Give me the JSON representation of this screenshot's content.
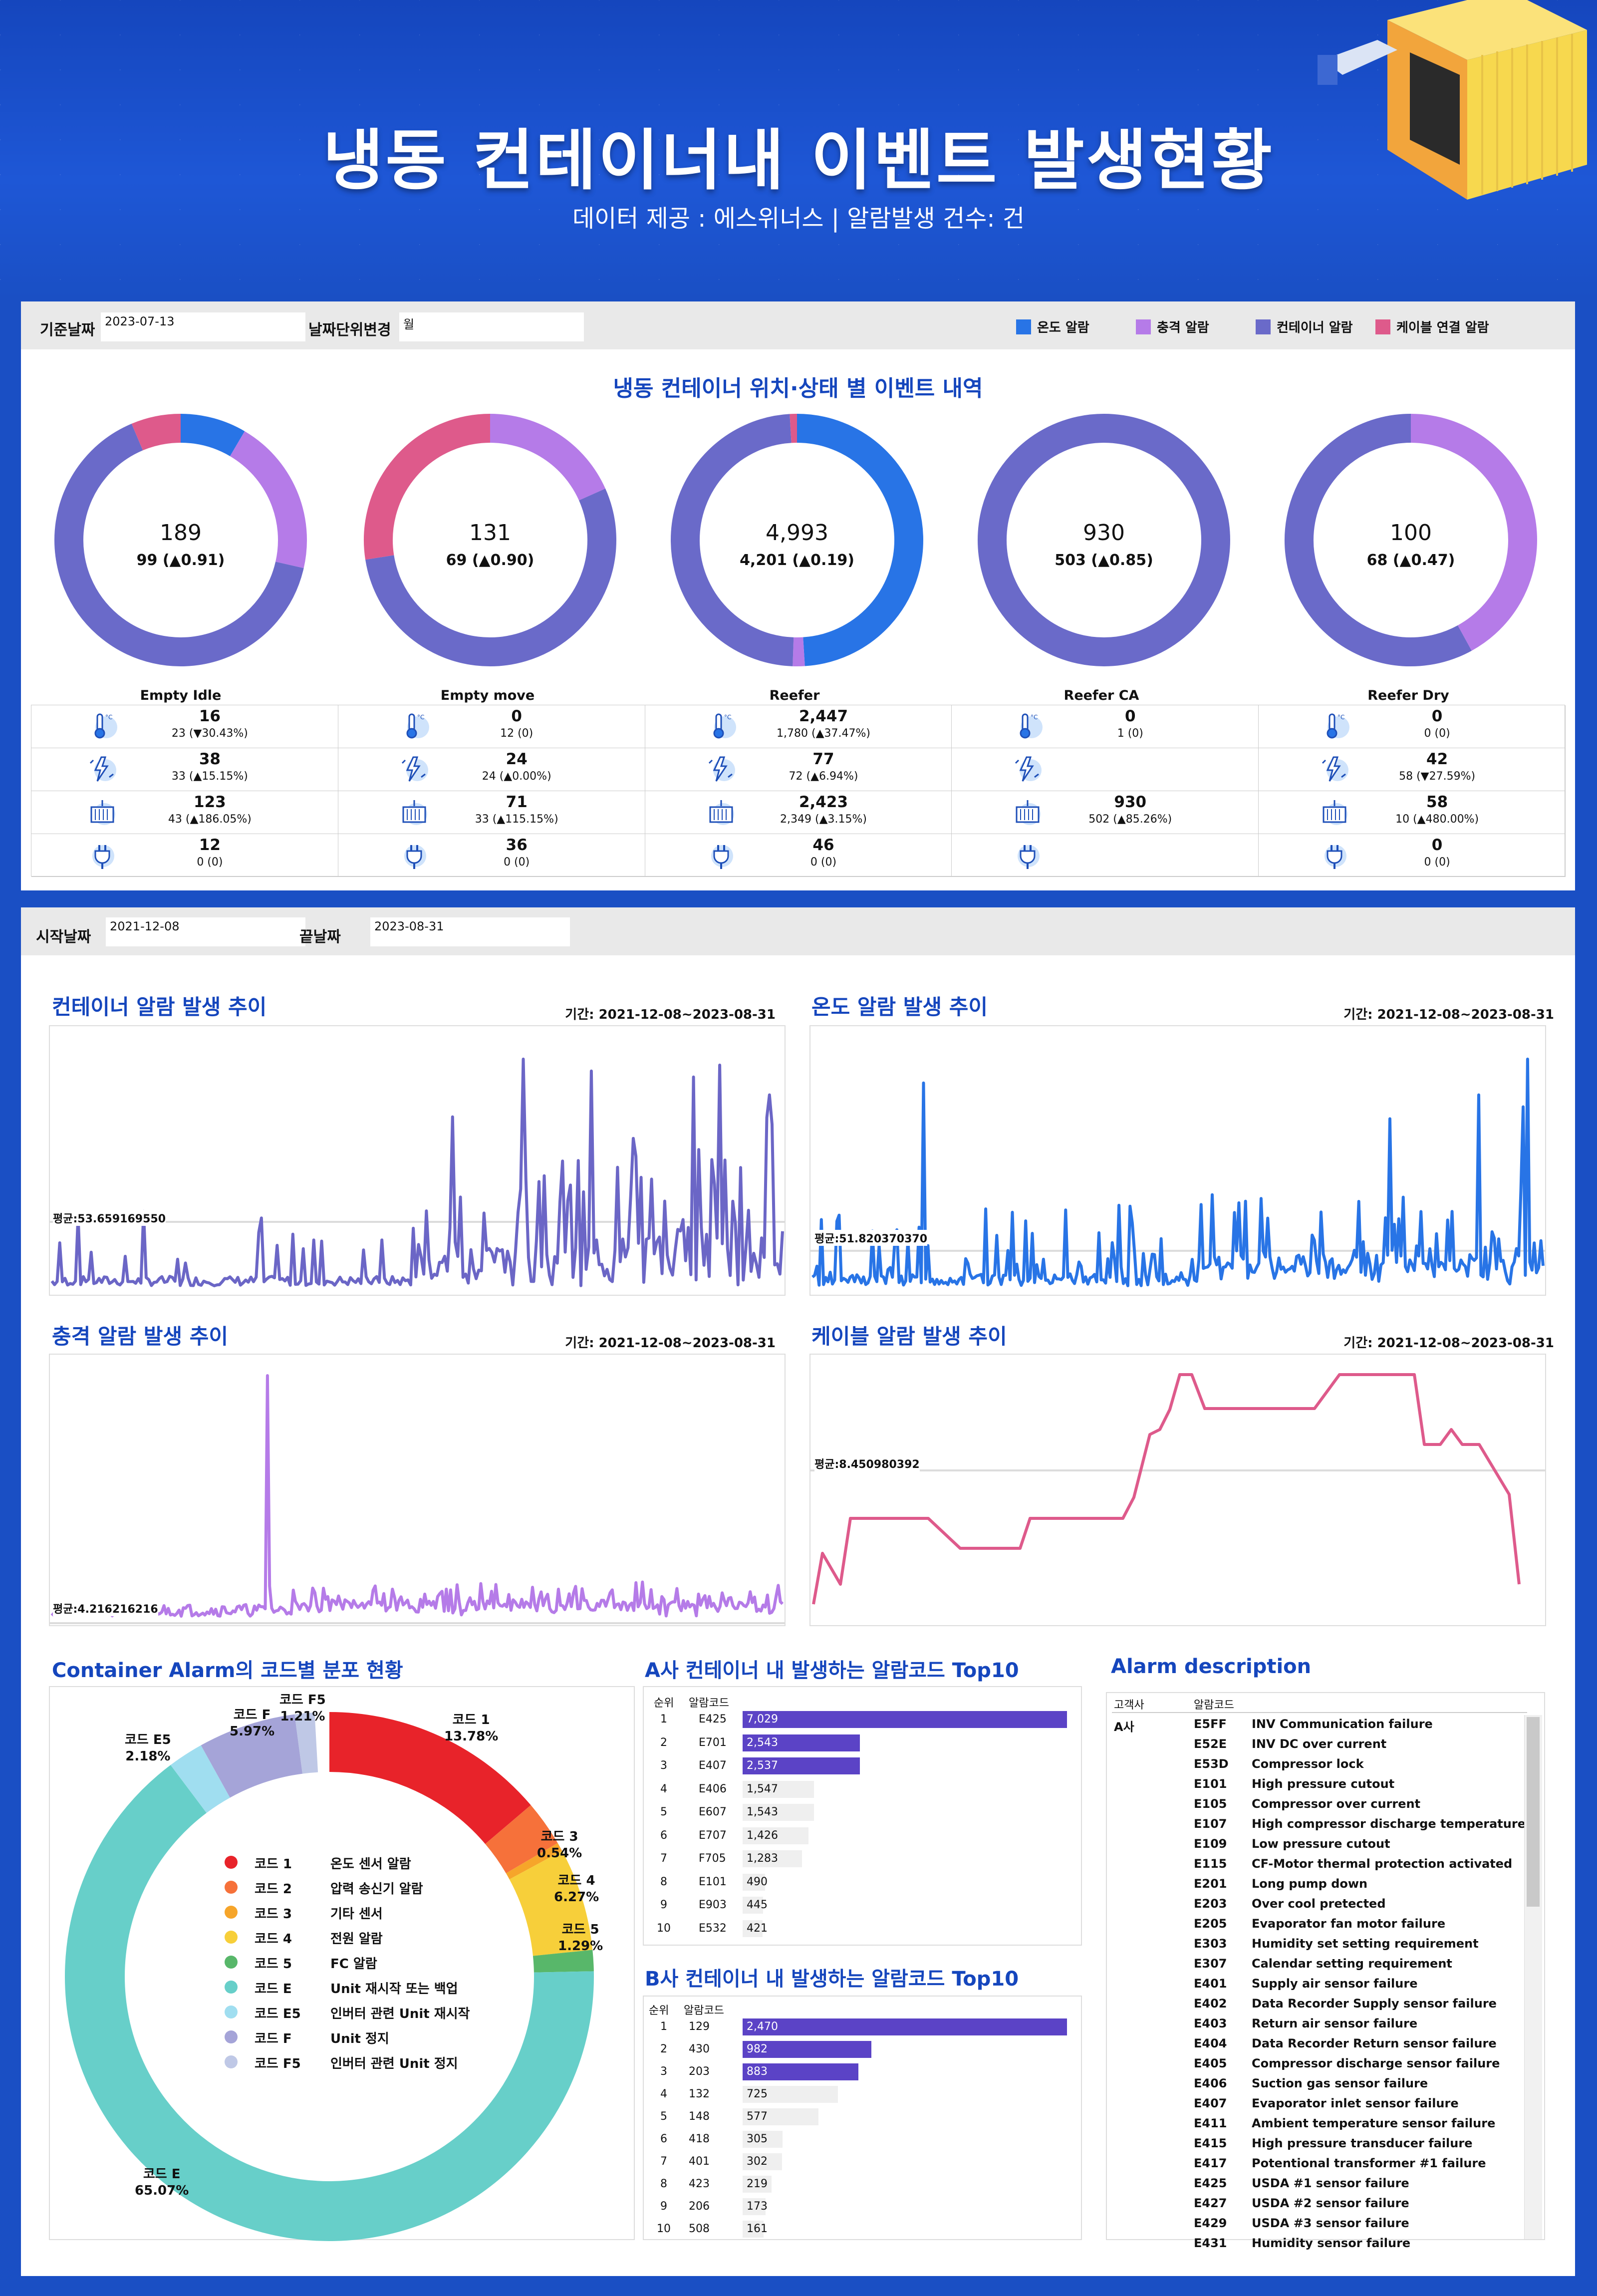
{
  "header": {
    "title": "냉동 컨테이너내 이벤트 발생현황",
    "subtitle": "데이터 제공 : 에스위너스 | 알람발생 건수: 건"
  },
  "filter1": {
    "base_date_label": "기준날짜",
    "base_date_value": "2023-07-13",
    "unit_label": "날짜단위변경",
    "unit_value": "월"
  },
  "legend": [
    {
      "label": "온도 알람",
      "color": "#2874e6"
    },
    {
      "label": "충격 알람",
      "color": "#b57be8"
    },
    {
      "label": "컨테이너 알람",
      "color": "#6a6ac9"
    },
    {
      "label": "케이블 연결 알람",
      "color": "#de5a8b"
    }
  ],
  "section1_title": "냉동 컨테이너 위치·상태 별 이벤트 내역",
  "donuts": [
    {
      "name": "Empty Idle",
      "total": "189",
      "sub": "99 (▲0.91)",
      "segments": [
        {
          "key": "temp",
          "value": 16
        },
        {
          "key": "shock",
          "value": 38
        },
        {
          "key": "container",
          "value": 123
        },
        {
          "key": "cable",
          "value": 12
        }
      ],
      "start": "temp"
    },
    {
      "name": "Empty move",
      "total": "131",
      "sub": "69 (▲0.90)",
      "segments": [
        {
          "key": "temp",
          "value": 0
        },
        {
          "key": "shock",
          "value": 24
        },
        {
          "key": "container",
          "value": 71
        },
        {
          "key": "cable",
          "value": 36
        }
      ]
    },
    {
      "name": "Reefer",
      "total": "4,993",
      "sub": "4,201 (▲0.19)",
      "segments": [
        {
          "key": "temp",
          "value": 2447
        },
        {
          "key": "shock",
          "value": 77
        },
        {
          "key": "container",
          "value": 2423
        },
        {
          "key": "cable",
          "value": 46
        }
      ]
    },
    {
      "name": "Reefer CA",
      "total": "930",
      "sub": "503 (▲0.85)",
      "segments": [
        {
          "key": "temp",
          "value": 0
        },
        {
          "key": "shock",
          "value": 0
        },
        {
          "key": "container",
          "value": 930
        },
        {
          "key": "cable",
          "value": 0
        }
      ]
    },
    {
      "name": "Reefer Dry",
      "total": "100",
      "sub": "68 (▲0.47)",
      "segments": [
        {
          "key": "temp",
          "value": 0
        },
        {
          "key": "shock",
          "value": 42
        },
        {
          "key": "container",
          "value": 58
        },
        {
          "key": "cable",
          "value": 0
        }
      ]
    }
  ],
  "stats": [
    [
      {
        "big": "16",
        "sm": "23 (▼30.43%)"
      },
      {
        "big": "38",
        "sm": "33 (▲15.15%)"
      },
      {
        "big": "123",
        "sm": "43 (▲186.05%)"
      },
      {
        "big": "12",
        "sm": "0 (0)"
      }
    ],
    [
      {
        "big": "0",
        "sm": "12 (0)"
      },
      {
        "big": "24",
        "sm": "24 (▲0.00%)"
      },
      {
        "big": "71",
        "sm": "33 (▲115.15%)"
      },
      {
        "big": "36",
        "sm": "0 (0)"
      }
    ],
    [
      {
        "big": "2,447",
        "sm": "1,780 (▲37.47%)"
      },
      {
        "big": "77",
        "sm": "72 (▲6.94%)"
      },
      {
        "big": "2,423",
        "sm": "2,349 (▲3.15%)"
      },
      {
        "big": "46",
        "sm": "0 (0)"
      }
    ],
    [
      {
        "big": "0",
        "sm": "1 (0)"
      },
      {
        "big": "",
        "sm": ""
      },
      {
        "big": "930",
        "sm": "502 (▲85.26%)"
      },
      {
        "big": "",
        "sm": ""
      }
    ],
    [
      {
        "big": "0",
        "sm": "0 (0)"
      },
      {
        "big": "42",
        "sm": "58 (▼27.59%)"
      },
      {
        "big": "58",
        "sm": "10 (▲480.00%)"
      },
      {
        "big": "0",
        "sm": "0 (0)"
      }
    ]
  ],
  "filter2": {
    "start_label": "시작날짜",
    "start_value": "2021-12-08",
    "end_label": "끝날짜",
    "end_value": "2023-08-31"
  },
  "charts": {
    "container": {
      "title": "컨테이너 알람 발생 추이",
      "period": "기간: 2021-12-08~2023-08-31",
      "avg": "평균:53.659169550",
      "color": "#6b66c6"
    },
    "temp": {
      "title": "온도 알람 발생 추이",
      "period": "기간: 2021-12-08~2023-08-31",
      "avg": "평균:51.820370370",
      "color": "#2874e6"
    },
    "shock": {
      "title": "충격 알람 발생 추이",
      "period": "기간: 2021-12-08~2023-08-31",
      "avg": "평균:4.216216216",
      "color": "#b57be8"
    },
    "cable": {
      "title": "케이블 알람 발생 추이",
      "period": "기간: 2021-12-08~2023-08-31",
      "avg": "평균:8.450980392",
      "color": "#de5a8b"
    }
  },
  "pie_title": "Container Alarm의 코드별 분포 현황",
  "pie": [
    {
      "code": "코드 1",
      "desc": "온도 센서 알람",
      "pct": "13.78%",
      "value": 13.78,
      "color": "#e8232a"
    },
    {
      "code": "코드 2",
      "desc": "압력 송신기 알람",
      "pct": "",
      "value": 2.8,
      "color": "#f6713a"
    },
    {
      "code": "코드 3",
      "desc": "기타 센서",
      "pct": "0.54%",
      "value": 0.54,
      "color": "#f6a52a"
    },
    {
      "code": "코드 4",
      "desc": "전원 알람",
      "pct": "6.27%",
      "value": 6.27,
      "color": "#f7cf3a"
    },
    {
      "code": "코드 5",
      "desc": "FC 알람",
      "pct": "1.29%",
      "value": 1.29,
      "color": "#58b76a"
    },
    {
      "code": "코드 E",
      "desc": "Unit 재시작 또는 백업",
      "pct": "65.07%",
      "value": 65.07,
      "color": "#67cfc9"
    },
    {
      "code": "코드 E5",
      "desc": "인버터 관련 Unit 재시작",
      "pct": "2.18%",
      "value": 2.18,
      "color": "#a0def0"
    },
    {
      "code": "코드 F",
      "desc": "Unit 정지",
      "pct": "5.97%",
      "value": 5.97,
      "color": "#a5a4d8"
    },
    {
      "code": "코드 F5",
      "desc": "인버터 관련 Unit 정지",
      "pct": "1.21%",
      "value": 1.21,
      "color": "#bfc8e6"
    }
  ],
  "top_a": {
    "title": "A사 컨테이너 내 발생하는 알람코드 Top10",
    "h_rank": "순위",
    "h_code": "알람코드",
    "rows": [
      [
        "1",
        "E425",
        7029,
        "7,029"
      ],
      [
        "2",
        "E701",
        2543,
        "2,543"
      ],
      [
        "3",
        "E407",
        2537,
        "2,537"
      ],
      [
        "4",
        "E406",
        1547,
        "1,547"
      ],
      [
        "5",
        "E607",
        1543,
        "1,543"
      ],
      [
        "6",
        "E707",
        1426,
        "1,426"
      ],
      [
        "7",
        "F705",
        1283,
        "1,283"
      ],
      [
        "8",
        "E101",
        490,
        "490"
      ],
      [
        "9",
        "E903",
        445,
        "445"
      ],
      [
        "10",
        "E532",
        421,
        "421"
      ]
    ]
  },
  "top_b": {
    "title": "B사 컨테이너 내 발생하는 알람코드 Top10",
    "h_rank": "순위",
    "h_code": "알람코드",
    "rows": [
      [
        "1",
        "129",
        2470,
        "2,470"
      ],
      [
        "2",
        "430",
        982,
        "982"
      ],
      [
        "3",
        "203",
        883,
        "883"
      ],
      [
        "4",
        "132",
        725,
        "725"
      ],
      [
        "5",
        "148",
        577,
        "577"
      ],
      [
        "6",
        "418",
        305,
        "305"
      ],
      [
        "7",
        "401",
        302,
        "302"
      ],
      [
        "8",
        "423",
        219,
        "219"
      ],
      [
        "9",
        "206",
        173,
        "173"
      ],
      [
        "10",
        "508",
        161,
        "161"
      ]
    ]
  },
  "desc": {
    "title": "Alarm description",
    "h_customer": "고객사",
    "h_code": "알람코드",
    "customer": "A사",
    "rows": [
      [
        "E5FF",
        "INV Communication failure"
      ],
      [
        "E52E",
        "INV DC over current"
      ],
      [
        "E53D",
        "Compressor lock"
      ],
      [
        "E101",
        "High pressure cutout"
      ],
      [
        "E105",
        "Compressor over current"
      ],
      [
        "E107",
        "High compressor discharge temperature"
      ],
      [
        "E109",
        "Low pressure cutout"
      ],
      [
        "E115",
        "CF-Motor thermal protection activated"
      ],
      [
        "E201",
        "Long pump down"
      ],
      [
        "E203",
        "Over cool pretected"
      ],
      [
        "E205",
        "Evaporator fan motor failure"
      ],
      [
        "E303",
        "Humidity set setting requirement"
      ],
      [
        "E307",
        "Calendar setting requirement"
      ],
      [
        "E401",
        "Supply air sensor failure"
      ],
      [
        "E402",
        "Data Recorder Supply sensor failure"
      ],
      [
        "E403",
        "Return air sensor failure"
      ],
      [
        "E404",
        "Data Recorder Return sensor failure"
      ],
      [
        "E405",
        "Compressor discharge sensor failure"
      ],
      [
        "E406",
        "Suction gas sensor failure"
      ],
      [
        "E407",
        "Evaporator inlet sensor failure"
      ],
      [
        "E411",
        "Ambient temperature sensor failure"
      ],
      [
        "E415",
        "High pressure transducer failure"
      ],
      [
        "E417",
        "Potentional transformer #1 failure"
      ],
      [
        "E425",
        "USDA #1 sensor failure"
      ],
      [
        "E427",
        "USDA #2 sensor failure"
      ],
      [
        "E429",
        "USDA #3 sensor failure"
      ],
      [
        "E431",
        "Humidity sensor failure"
      ]
    ]
  }
}
